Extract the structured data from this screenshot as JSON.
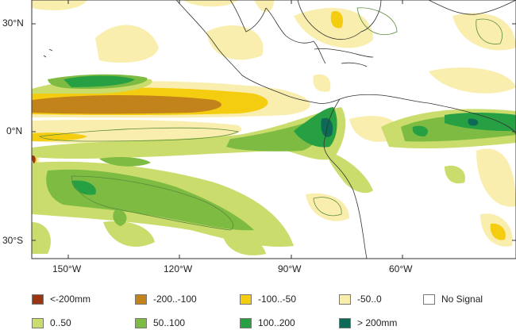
{
  "map": {
    "lat_labels": [
      "30°N",
      "0°N",
      "30°S"
    ],
    "lon_labels": [
      "150°W",
      "120°W",
      "90°W",
      "60°W"
    ]
  },
  "legend": [
    {
      "label": "<-200mm",
      "color": "#9b3413"
    },
    {
      "label": "-200..-100",
      "color": "#c2841a"
    },
    {
      "label": "-100..-50",
      "color": "#f5cd10"
    },
    {
      "label": "-50..0",
      "color": "#f9eeae"
    },
    {
      "label": "No Signal",
      "color": "#ffffff"
    },
    {
      "label": "0..50",
      "color": "#c9dc6c"
    },
    {
      "label": "50..100",
      "color": "#7dbb42"
    },
    {
      "label": "100..200",
      "color": "#27a044"
    },
    {
      "label": "> 200mm",
      "color": "#0d6a56"
    }
  ]
}
